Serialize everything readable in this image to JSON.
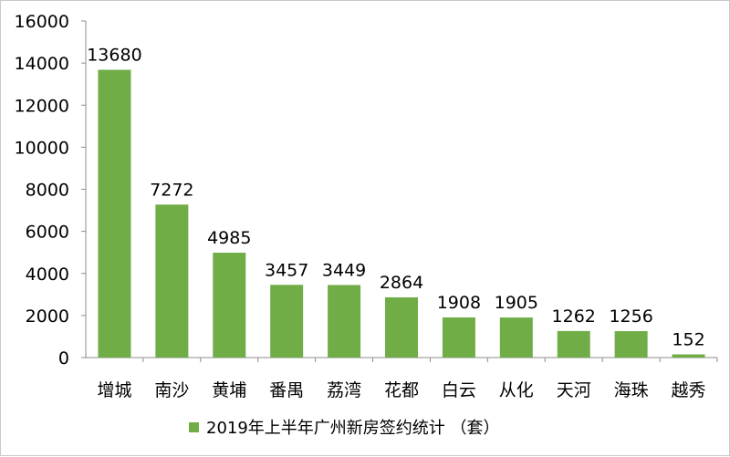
{
  "chart_data": {
    "type": "bar",
    "categories": [
      "增城",
      "南沙",
      "黄埔",
      "番禺",
      "荔湾",
      "花都",
      "白云",
      "从化",
      "天河",
      "海珠",
      "越秀"
    ],
    "series": [
      {
        "name": "2019年上半年广州新房签约统计（套）",
        "values": [
          13680,
          7272,
          4985,
          3457,
          3449,
          2864,
          1908,
          1905,
          1262,
          1256,
          152
        ]
      }
    ],
    "yticks": [
      0,
      2000,
      4000,
      6000,
      8000,
      10000,
      12000,
      14000,
      16000
    ],
    "ylim": [
      0,
      16000
    ],
    "grid": false,
    "legend_position": "bottom",
    "bar_color": "#70ad47"
  },
  "legend": {
    "label": "2019年上半年广州新房签约统计 （套）"
  }
}
